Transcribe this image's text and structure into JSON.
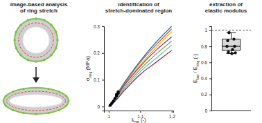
{
  "chart_data": [
    {
      "type": "diagram",
      "title": [
        "image-based analysis",
        "of ring stretch"
      ]
    },
    {
      "type": "line",
      "title": [
        "identification of",
        "stretch-dominated region"
      ],
      "xlabel": [
        "λ",
        "OP",
        " (-)"
      ],
      "ylabel": [
        "σ",
        "ring",
        " (MPa)"
      ],
      "x": [
        1,
        1.02,
        1.05,
        1.1,
        1.15,
        1.2
      ],
      "xlim": [
        0.985,
        1.205
      ],
      "xticks": [
        1,
        1.1,
        1.2
      ],
      "ylim": [
        -0.015,
        0.3
      ],
      "yticks": [
        0,
        0.1,
        0.2,
        0.3
      ],
      "series": [
        {
          "color": "#0072BD",
          "values": [
            0,
            0.035,
            0.09,
            0.17,
            0.24,
            0.3
          ]
        },
        {
          "color": "#D95319",
          "values": [
            0,
            0.03,
            0.085,
            0.165,
            0.23,
            0.29
          ]
        },
        {
          "color": "#EDB120",
          "values": [
            0,
            0.028,
            0.08,
            0.155,
            0.22,
            0.28
          ]
        },
        {
          "color": "#7E2F8E",
          "values": [
            0,
            0.03,
            0.08,
            0.15,
            0.21,
            0.26
          ]
        },
        {
          "color": "#77AC30",
          "values": [
            0,
            0.025,
            0.072,
            0.14,
            0.195,
            0.245
          ]
        },
        {
          "color": "#4DBEEE",
          "values": [
            0,
            0.022,
            0.066,
            0.13,
            0.18,
            0.23
          ]
        },
        {
          "color": "#A2142F",
          "values": [
            0,
            0.02,
            0.06,
            0.12,
            0.165,
            0.21
          ]
        },
        {
          "color": "#000000",
          "type": "scatter",
          "marker": "circle",
          "x": [
            1.005,
            1.01,
            1.015,
            1.02,
            1.025,
            1.03,
            1.025,
            1.03
          ],
          "values": [
            0.005,
            0.012,
            0.02,
            0.03,
            0.04,
            0.05,
            0.045,
            0.055
          ]
        }
      ]
    },
    {
      "type": "box",
      "title": [
        "extraction of",
        "elastic modulus"
      ],
      "ylabel": [
        "E",
        "bar",
        " / E",
        "ring",
        " (-)"
      ],
      "ylim": [
        0,
        1.05
      ],
      "yticks": [
        0,
        0.2,
        0.4,
        0.6,
        0.8,
        1
      ],
      "reference_line": 1,
      "tick_labels": "y",
      "color": "#d9d9d9",
      "box": {
        "whislo": 0.71,
        "q1": 0.75,
        "med": 0.8,
        "q3": 0.89,
        "whishi": 0.97
      },
      "points": [
        0.97,
        0.89,
        0.87,
        0.8,
        0.8,
        0.76,
        0.73,
        0.72,
        0.71
      ]
    }
  ]
}
